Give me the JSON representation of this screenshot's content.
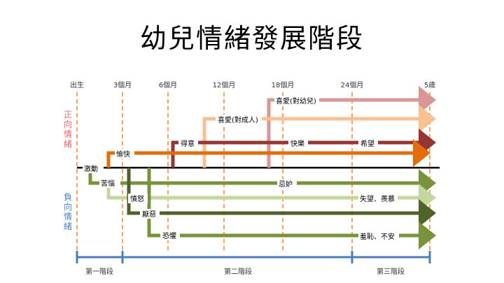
{
  "title": "幼兒情緒發展階段",
  "timeline": [
    "出生",
    "3個月",
    "6個月",
    "12個月",
    "18個月",
    "24個月",
    "5歲"
  ],
  "positive_label": "正向情緒",
  "negative_label": "負向情緒",
  "emotions": {
    "excite": "激動",
    "joy": "愉快",
    "proud": "得意",
    "happy": "快樂",
    "hope": "希望",
    "love_adult": "喜愛(對成人)",
    "love_child": "喜愛(對幼兒)",
    "distress": "苦惱",
    "anger": "憤怒",
    "jealous": "忌妒",
    "disappoint": "失望、羨慕",
    "disgust": "厭惡",
    "fear": "恐懼",
    "shame": "羞恥、不安"
  },
  "stages": [
    "第一階段",
    "第二階段",
    "第三階段"
  ],
  "colors": {
    "dash": "#F4A460",
    "stage_axis": "#4A7EBB",
    "positive_text": "#E06666",
    "negative_text": "#4F81BD",
    "orange": "#E46C0A",
    "dark_red": "#943634",
    "peach": "#FAC090",
    "pink": "#D99694",
    "olive": "#77933C",
    "light_green": "#C3D69B",
    "dark_green": "#4F6228"
  }
}
